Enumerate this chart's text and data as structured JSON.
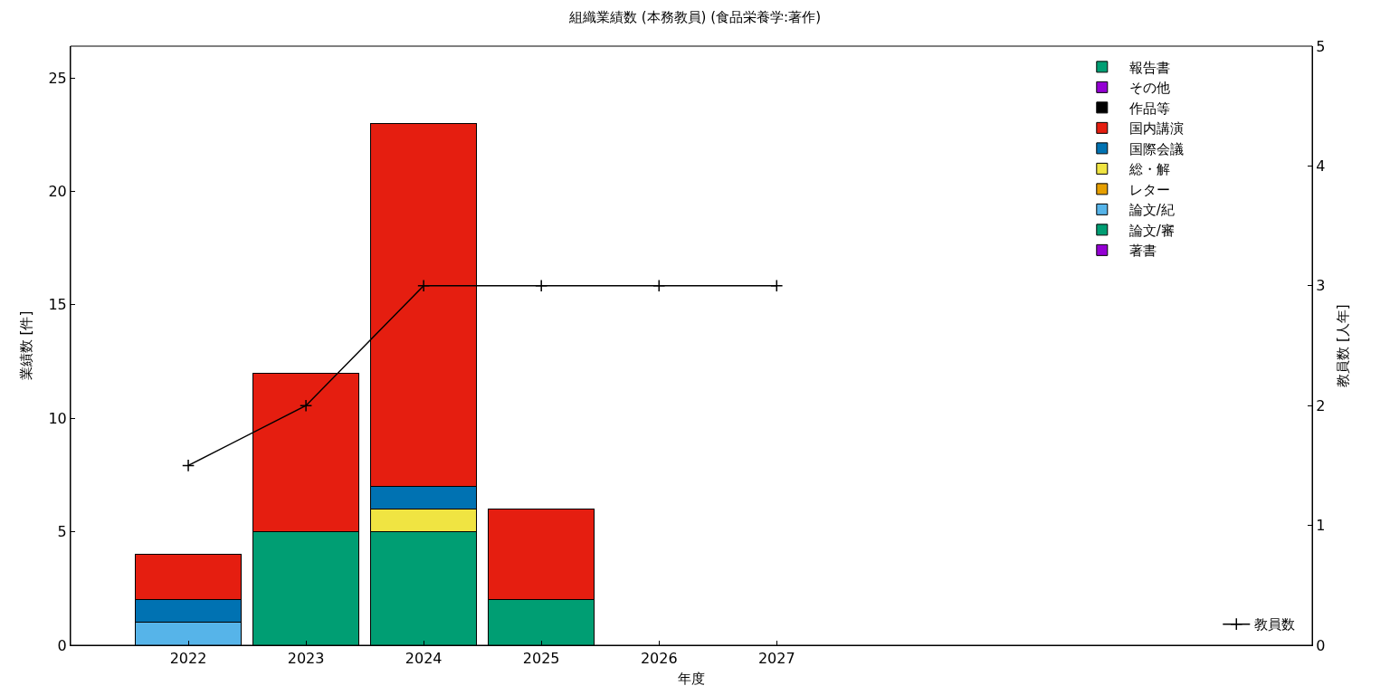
{
  "chart_data": {
    "type": "bar",
    "title": "組織業績数 (本務教員) (食品栄養学:著作)",
    "xlabel": "年度",
    "ylabel": "業績数 [件]",
    "y2label": "教員数 [人年]",
    "x": [
      2022,
      2023,
      2024,
      2025,
      2026,
      2027
    ],
    "stacked": true,
    "legend": "right",
    "xlim": [
      2021,
      2031.55
    ],
    "xticks": [
      2022,
      2023,
      2024,
      2025,
      2026,
      2027
    ],
    "ylim": [
      0,
      26.4
    ],
    "yticks": [
      0,
      5,
      10,
      15,
      20,
      25
    ],
    "y2lim": [
      0,
      5
    ],
    "y2ticks": [
      0,
      1,
      2,
      3,
      4,
      5
    ],
    "series": [
      {
        "name": "著書",
        "color": "#9400d3",
        "values": [
          null,
          null,
          null,
          null,
          null,
          null
        ]
      },
      {
        "name": "論文/審",
        "color": "#009e73",
        "values": [
          null,
          5,
          5,
          2,
          null,
          null
        ]
      },
      {
        "name": "論文/紀",
        "color": "#56b4e9",
        "values": [
          1,
          null,
          null,
          null,
          null,
          null
        ]
      },
      {
        "name": "レター",
        "color": "#e69f00",
        "values": [
          null,
          null,
          null,
          null,
          null,
          null
        ]
      },
      {
        "name": "総・解",
        "color": "#f0e442",
        "values": [
          null,
          null,
          1,
          null,
          null,
          null
        ]
      },
      {
        "name": "国際会議",
        "color": "#0072b2",
        "values": [
          1,
          null,
          1,
          null,
          null,
          null
        ]
      },
      {
        "name": "国内講演",
        "color": "#e51e10",
        "values": [
          2,
          7,
          16,
          4,
          null,
          null
        ]
      },
      {
        "name": "作品等",
        "color": "#000000",
        "values": [
          null,
          null,
          null,
          null,
          null,
          null
        ]
      },
      {
        "name": "その他",
        "color": "#9400d3",
        "values": [
          null,
          null,
          null,
          null,
          null,
          null
        ]
      },
      {
        "name": "報告書",
        "color": "#009e73",
        "values": [
          null,
          null,
          null,
          null,
          null,
          null
        ]
      },
      {
        "name": "教員数",
        "type": "line",
        "axis": "y2",
        "color": "#000000",
        "marker": "cross",
        "line_style": "solid",
        "values": [
          1.5,
          2,
          3,
          3,
          3,
          3
        ]
      }
    ]
  }
}
